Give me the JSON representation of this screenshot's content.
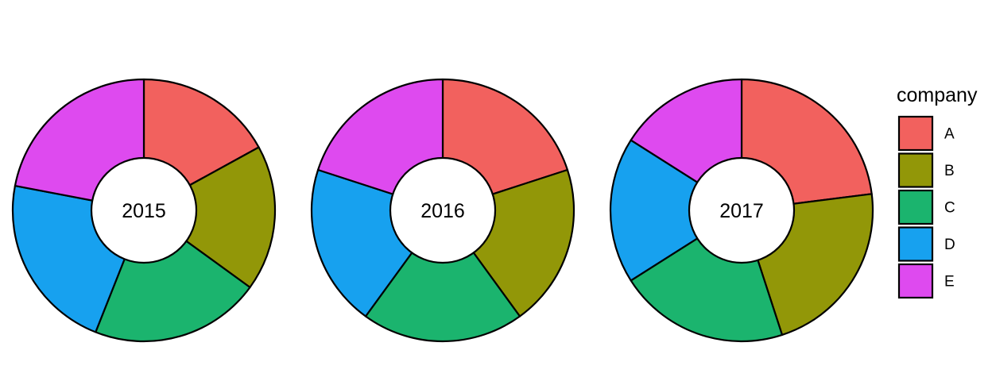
{
  "chart_data": {
    "type": "pie",
    "style": "donut",
    "categories": [
      "A",
      "B",
      "C",
      "D",
      "E"
    ],
    "colors": [
      "#F2615E",
      "#929708",
      "#1BB46E",
      "#17A1EF",
      "#DE4AEF"
    ],
    "series": [
      {
        "name": "2015",
        "values": [
          17,
          18,
          21,
          22,
          22
        ]
      },
      {
        "name": "2016",
        "values": [
          20,
          20,
          20,
          20,
          20
        ]
      },
      {
        "name": "2017",
        "values": [
          23,
          22,
          21,
          18,
          16
        ]
      }
    ],
    "legend": {
      "title": "company",
      "position": "right"
    },
    "grid": false
  }
}
